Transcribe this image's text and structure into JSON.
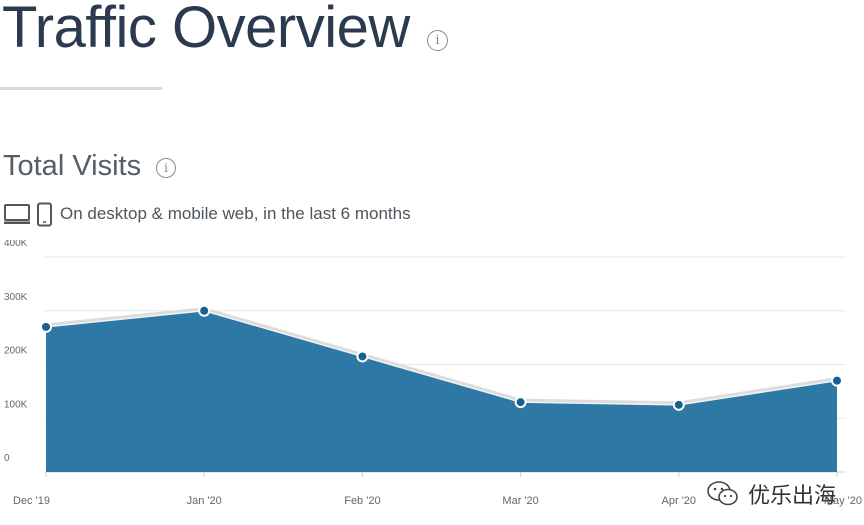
{
  "header": {
    "title": "Traffic Overview",
    "info_icon": "info-icon"
  },
  "section": {
    "title": "Total Visits",
    "info_icon": "info-icon",
    "device_icons": [
      "desktop-icon",
      "mobile-icon"
    ],
    "subtitle": "On desktop & mobile web, in the last 6 months"
  },
  "chart_data": {
    "type": "area",
    "title": "",
    "xlabel": "",
    "ylabel": "",
    "categories": [
      "Dec '19",
      "Jan '20",
      "Feb '20",
      "Mar '20",
      "Apr '20",
      "May '20"
    ],
    "series": [
      {
        "values": [
          270000,
          300000,
          215000,
          130000,
          125000,
          170000
        ]
      }
    ],
    "ylim": [
      0,
      400000
    ],
    "yticks": [
      0,
      100000,
      200000,
      300000,
      400000
    ],
    "ytick_labels": [
      "0",
      "100K",
      "200K",
      "300K",
      "400K"
    ],
    "grid": true,
    "legend": "none",
    "colors": {
      "fill": "#2e78a6",
      "point": "#15628f",
      "grid": "#e8e8e8",
      "axis_text": "#666666"
    }
  },
  "watermark": {
    "text": "优乐出海",
    "icon": "wechat-icon"
  }
}
